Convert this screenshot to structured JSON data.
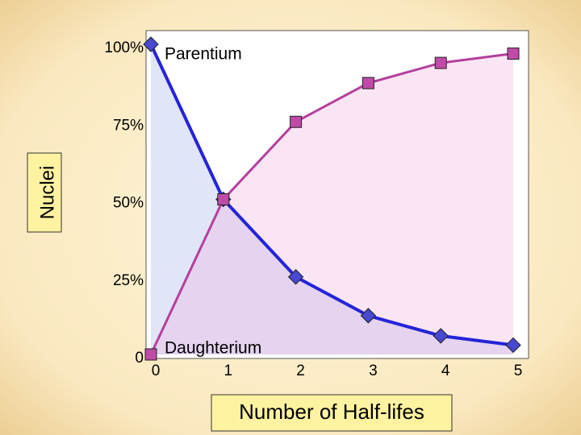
{
  "chart_data": {
    "type": "line",
    "y_label": "Nuclei",
    "x_label": "Number of Half-lifes",
    "x": [
      0,
      1,
      2,
      3,
      4,
      5
    ],
    "xlim": [
      0,
      5
    ],
    "xticks": [
      0,
      1,
      2,
      3,
      4,
      5
    ],
    "ylim": [
      0,
      100
    ],
    "yticks": [
      {
        "value": 0,
        "label": "0"
      },
      {
        "value": 25,
        "label": "25%"
      },
      {
        "value": 50,
        "label": "50%"
      },
      {
        "value": 75,
        "label": "75%"
      },
      {
        "value": 100,
        "label": "100%"
      }
    ],
    "series": [
      {
        "name": "Parentium",
        "color": "#2424d8",
        "marker": "diamond",
        "values": [
          100,
          50,
          25,
          12.5,
          6,
          3
        ]
      },
      {
        "name": "Daughterium",
        "color": "#b4409c",
        "marker": "square",
        "values": [
          0,
          50,
          75,
          87.5,
          94,
          97
        ]
      }
    ]
  }
}
